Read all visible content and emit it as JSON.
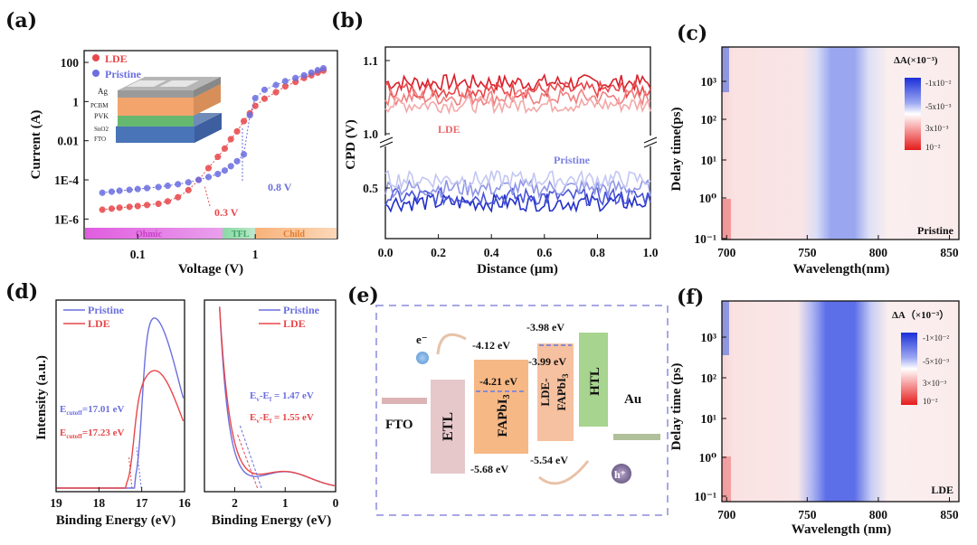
{
  "colors": {
    "lde": "#e8474a",
    "pristine": "#6b6fe0",
    "blue_dark": "#2230c8",
    "frame": "#111111"
  },
  "chart_data": [
    {
      "panel": "(a)",
      "type": "scatter",
      "xlabel": "Voltage (V)",
      "ylabel": "Current (A)",
      "xscale": "log",
      "yscale": "log",
      "xlim": [
        0.035,
        5
      ],
      "ylim": [
        1e-07,
        400
      ],
      "x_ticks": [
        {
          "v": 0.1,
          "label": "0.1"
        },
        {
          "v": 1,
          "label": "1"
        }
      ],
      "y_ticks": [
        {
          "v": 100,
          "label": "100"
        },
        {
          "v": 1,
          "label": "1"
        },
        {
          "v": 0.01,
          "label": "0.01"
        },
        {
          "v": 0.0001,
          "label": "1E-4"
        },
        {
          "v": 1e-06,
          "label": "1E-6"
        }
      ],
      "legend": [
        "LDE",
        "Pristine"
      ],
      "series": [
        {
          "name": "LDE",
          "x": [
            0.05,
            0.06,
            0.07,
            0.085,
            0.1,
            0.12,
            0.15,
            0.18,
            0.22,
            0.27,
            0.33,
            0.4,
            0.48,
            0.55,
            0.62,
            0.7,
            0.8,
            0.9,
            1.0,
            1.2,
            1.5,
            1.8,
            2.2,
            2.6,
            3.0,
            3.4,
            3.8
          ],
          "y": [
            3e-06,
            3.4e-06,
            3.8e-06,
            4.2e-06,
            4.6e-06,
            5.2e-06,
            6e-06,
            8e-06,
            1.3e-05,
            3e-05,
            0.0001,
            0.0004,
            0.0015,
            0.004,
            0.012,
            0.03,
            0.1,
            0.25,
            0.6,
            1.4,
            3,
            6,
            10,
            16,
            22,
            30,
            38
          ]
        },
        {
          "name": "Pristine",
          "x": [
            0.05,
            0.06,
            0.07,
            0.085,
            0.1,
            0.12,
            0.15,
            0.18,
            0.22,
            0.27,
            0.33,
            0.4,
            0.48,
            0.55,
            0.62,
            0.7,
            0.8,
            0.9,
            1.0,
            1.2,
            1.5,
            1.8,
            2.2,
            2.6,
            3.0,
            3.4,
            3.8
          ],
          "y": [
            2.2e-05,
            2.5e-05,
            2.8e-05,
            3.1e-05,
            3.4e-05,
            3.8e-05,
            4.3e-05,
            5e-05,
            6e-05,
            7.5e-05,
            0.0001,
            0.00014,
            0.0002,
            0.0003,
            0.0005,
            0.0009,
            0.002,
            0.2,
            1.5,
            4,
            7,
            11,
            16,
            22,
            30,
            40,
            50
          ]
        }
      ],
      "annotations": [
        "0.3 V",
        "0.8 V"
      ],
      "regions": [
        "Ohmic",
        "TFL",
        "Child"
      ],
      "inset_layers": [
        "Ag",
        "PCBM",
        "PVK",
        "SnO2",
        "FTO"
      ]
    },
    {
      "panel": "(b)",
      "type": "line",
      "xlabel": "Distance (μm)",
      "ylabel": "CPD (V)",
      "xlim": [
        0,
        1.0
      ],
      "x_ticks": [
        "0.0",
        "0.2",
        "0.4",
        "0.6",
        "0.8",
        "1.0"
      ],
      "y_ticks_upper": [
        "1.1",
        "1.0"
      ],
      "y_ticks_lower": [
        "0.5"
      ],
      "labels": [
        "LDE",
        "Pristine"
      ],
      "series": [
        {
          "name": "LDE",
          "mean_values": [
            1.07,
            1.06,
            1.05,
            1.04
          ]
        },
        {
          "name": "Pristine",
          "mean_values": [
            0.45,
            0.47,
            0.5,
            0.53
          ]
        }
      ]
    },
    {
      "panel": "(c)",
      "type": "heatmap",
      "xlabel": "Wavelength(nm)",
      "ylabel": "Delay time(ps)",
      "x_ticks": [
        "700",
        "750",
        "800",
        "850"
      ],
      "y_ticks": [
        "10⁻¹",
        "10⁰",
        "10¹",
        "10²",
        "10³"
      ],
      "cbar_title": "ΔA(×10⁻³)",
      "cbar_labels": [
        "-1x10⁻²",
        "-5x10⁻³",
        "3x10⁻³",
        "10⁻²"
      ],
      "sample": "Pristine",
      "bleach_center_nm": 780
    },
    {
      "panel": "(d)",
      "type": "line",
      "xlabel_left": "Binding Energy (eV)",
      "xlabel_right": "Binding Energy (eV)",
      "ylabel": "Intensity (a.u.)",
      "x_ticks_left": [
        "19",
        "18",
        "17",
        "16"
      ],
      "x_ticks_right": [
        "2",
        "1",
        "0"
      ],
      "legend": [
        "Pristine",
        "LDE"
      ],
      "annotations_left": [
        {
          "label": "E",
          "sub": "cutoff",
          "value": "=17.01 eV",
          "series": "Pristine"
        },
        {
          "label": "E",
          "sub": "cutoff",
          "value": "=17.23 eV",
          "series": "LDE"
        }
      ],
      "annotations_right": [
        {
          "label": "E",
          "sub1": "v",
          "sep": "-E",
          "sub2": "f",
          "value": " = 1.47 eV",
          "series": "Pristine"
        },
        {
          "label": "E",
          "sub1": "v",
          "sep": "-E",
          "sub2": "f",
          "value": " = 1.55 eV",
          "series": "LDE"
        }
      ]
    },
    {
      "panel": "(e)",
      "type": "diagram",
      "layers": [
        "FTO",
        "ETL",
        "FAPbI3",
        "LDE-FAPbI3",
        "HTL",
        "Au"
      ],
      "energies": {
        "fapbi3_cb": "-4.12 eV",
        "fapbi3_fermi": "-4.21 eV",
        "fapbi3_vb": "-5.68 eV",
        "lde_cb": "-3.98 eV",
        "lde_fermi": "-3.99 eV",
        "lde_vb": "-5.54 eV"
      },
      "carriers": [
        "e⁻",
        "h⁺"
      ]
    },
    {
      "panel": "(f)",
      "type": "heatmap",
      "xlabel": "Wavelength (nm)",
      "ylabel": "Delay time (ps)",
      "x_ticks": [
        "700",
        "750",
        "800",
        "850"
      ],
      "y_ticks": [
        "10⁻¹",
        "10⁰",
        "10¹",
        "10²",
        "10³"
      ],
      "cbar_title": "ΔA（×10⁻³）",
      "cbar_labels": [
        "-1×10⁻²",
        "-5×10⁻³",
        "3×10⁻³",
        "10⁻²"
      ],
      "sample": "LDE",
      "bleach_center_nm": 780
    }
  ],
  "labels": {
    "a": "(a)",
    "b": "(b)",
    "c": "(c)",
    "d": "(d)",
    "e": "(e)",
    "f": "(f)"
  }
}
